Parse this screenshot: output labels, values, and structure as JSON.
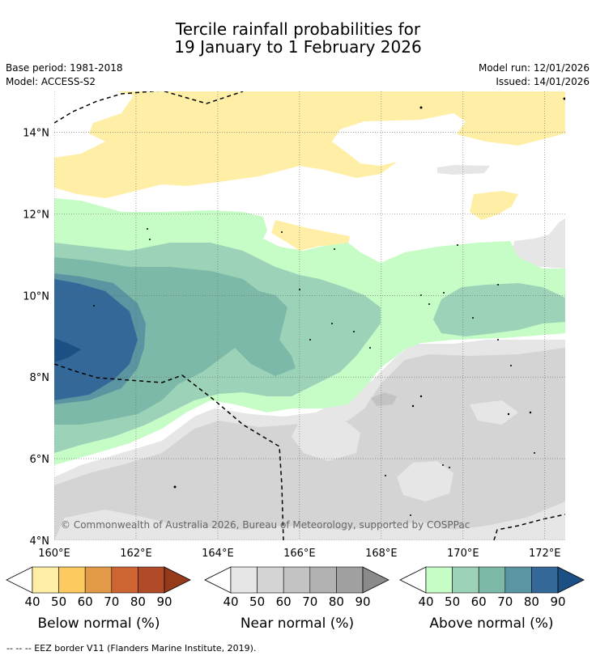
{
  "title": {
    "line1": "Tercile rainfall probabilities for",
    "line2": "19 January to 1 February 2026"
  },
  "info": {
    "base_period": "Base period: 1981-2018",
    "model": "Model: ACCESS-S2",
    "model_run": "Model run: 12/01/2026",
    "issued": "Issued: 14/01/2026"
  },
  "map": {
    "copyright": "© Commonwealth of Australia 2026, Bureau of Meteorology, supported by COSPPac",
    "lon_labels": [
      "160°E",
      "162°E",
      "164°E",
      "166°E",
      "168°E",
      "170°E",
      "172°E"
    ],
    "lat_labels": [
      "14°N",
      "12°N",
      "10°N",
      "8°N",
      "6°N",
      "4°N"
    ],
    "lon_range": [
      160,
      172.5
    ],
    "lat_range": [
      4,
      15
    ],
    "gridlines": true
  },
  "colorbars": [
    {
      "label": "Below normal (%)",
      "ticks": [
        "40",
        "50",
        "60",
        "70",
        "80",
        "90"
      ],
      "colors": [
        "#ffefa6",
        "#fdca60",
        "#e39a48",
        "#cd6431",
        "#b04a28",
        "#963a1c"
      ]
    },
    {
      "label": "Near normal (%)",
      "ticks": [
        "40",
        "50",
        "60",
        "70",
        "80",
        "90"
      ],
      "colors": [
        "#e6e6e6",
        "#d4d4d4",
        "#c3c3c3",
        "#b2b2b2",
        "#a0a0a0",
        "#8a8a8a"
      ]
    },
    {
      "label": "Above normal (%)",
      "ticks": [
        "40",
        "50",
        "60",
        "70",
        "80",
        "90"
      ],
      "colors": [
        "#c6fcc6",
        "#9cd3b8",
        "#7db9a8",
        "#5c95a2",
        "#346898",
        "#1c4f84"
      ]
    }
  ],
  "footnote": "--  --  -- EEZ border V11 (Flanders Marine Institute, 2019)."
}
